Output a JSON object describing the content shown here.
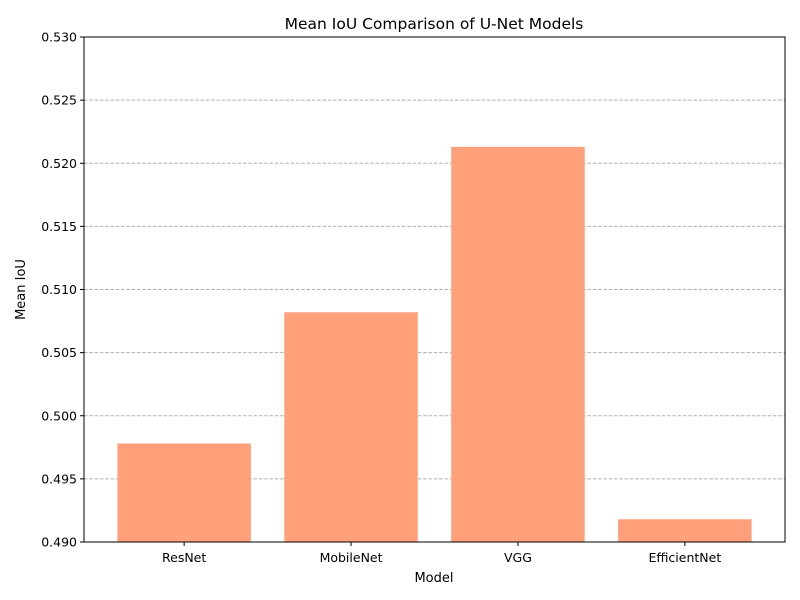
{
  "chart_data": {
    "type": "bar",
    "title": "Mean IoU Comparison of U-Net Models",
    "xlabel": "Model",
    "ylabel": "Mean IoU",
    "categories": [
      "ResNet",
      "MobileNet",
      "VGG",
      "EfficientNet"
    ],
    "values": [
      0.4978,
      0.5082,
      0.5213,
      0.4918
    ],
    "ylim": [
      0.49,
      0.53
    ],
    "yticks": [
      0.49,
      0.495,
      0.5,
      0.505,
      0.51,
      0.515,
      0.52,
      0.525,
      0.53
    ],
    "ytick_labels": [
      "0.490",
      "0.495",
      "0.500",
      "0.505",
      "0.510",
      "0.515",
      "0.520",
      "0.525",
      "0.530"
    ],
    "grid": "y-dashed",
    "bar_color": "#FFA07A",
    "grid_color": "#b0b0b0"
  }
}
